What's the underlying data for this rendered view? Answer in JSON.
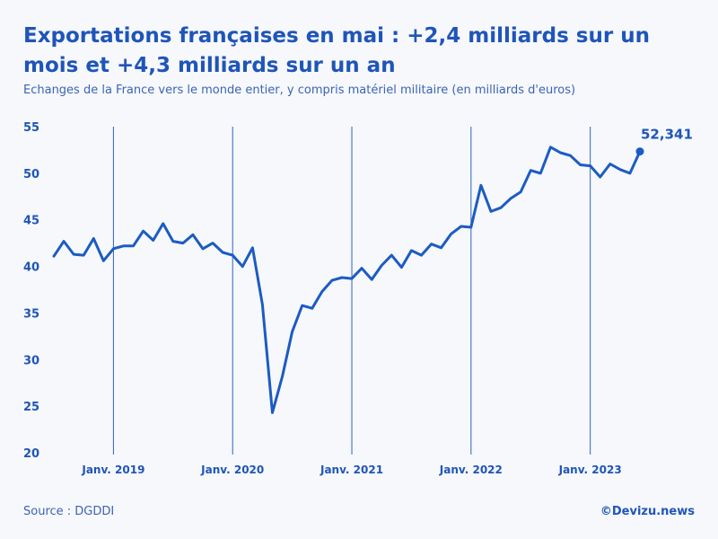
{
  "chart_data": {
    "type": "line",
    "title": "Exportations françaises en mai : +2,4 milliards sur un mois et +4,3 milliards sur un an",
    "subtitle": "Echanges de la France vers le monde entier, y compris matériel militaire (en milliards d'euros)",
    "xlabel": "",
    "ylabel": "",
    "ylim": [
      20,
      55
    ],
    "yticks": [
      "20",
      "25",
      "30",
      "35",
      "40",
      "45",
      "50",
      "55"
    ],
    "x_start": "2018-07",
    "x_end": "2023-05",
    "month_range": [
      7,
      66
    ],
    "vertical_gridlines": [
      {
        "label": "Janv. 2019",
        "month": 13
      },
      {
        "label": "Janv. 2020",
        "month": 25
      },
      {
        "label": "Janv. 2021",
        "month": 37
      },
      {
        "label": "Janv. 2022",
        "month": 49
      },
      {
        "label": "Janv. 2023",
        "month": 61
      }
    ],
    "series": [
      {
        "name": "Exportations",
        "color": "#1c5bc2",
        "values": [
          41.1,
          42.7,
          41.3,
          41.2,
          43.0,
          40.6,
          41.9,
          42.2,
          42.2,
          43.8,
          42.8,
          44.6,
          42.7,
          42.5,
          43.4,
          41.9,
          42.5,
          41.5,
          41.2,
          40.0,
          42.0,
          35.9,
          24.3,
          28.2,
          33.0,
          35.8,
          35.5,
          37.3,
          38.5,
          38.8,
          38.7,
          39.8,
          38.6,
          40.1,
          41.2,
          39.9,
          41.7,
          41.2,
          42.4,
          42.0,
          43.5,
          44.3,
          44.2,
          48.7,
          45.9,
          46.3,
          47.3,
          48.0,
          50.3,
          50.0,
          52.8,
          52.2,
          51.9,
          50.9,
          50.8,
          49.6,
          51.0,
          50.4,
          50.0,
          52.341
        ]
      }
    ],
    "last_value_label": "52,341"
  },
  "source": "Source : DGDDI",
  "credit": "©Devizu.news"
}
